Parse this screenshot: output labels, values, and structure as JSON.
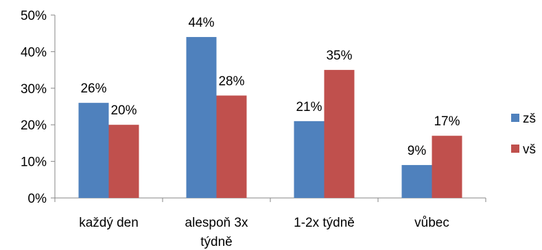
{
  "chart_data": {
    "type": "bar",
    "categories": [
      [
        "každý den"
      ],
      [
        "alespoň 3x",
        "týdně"
      ],
      [
        "1-2x týdně"
      ],
      [
        "vůbec"
      ]
    ],
    "series": [
      {
        "name": "zš",
        "values": [
          26,
          44,
          21,
          9
        ],
        "labels": [
          "26%",
          "44%",
          "21%",
          "9%"
        ],
        "color": "#4F81BD"
      },
      {
        "name": "vš",
        "values": [
          20,
          28,
          35,
          17
        ],
        "labels": [
          "20%",
          "28%",
          "35%",
          "17%"
        ],
        "color": "#C0504D"
      }
    ],
    "ylim": [
      0,
      50
    ],
    "yticks": [
      0,
      10,
      20,
      30,
      40,
      50
    ],
    "ytick_labels": [
      "0%",
      "10%",
      "20%",
      "30%",
      "40%",
      "50%"
    ],
    "grid": false,
    "legend": "right"
  }
}
